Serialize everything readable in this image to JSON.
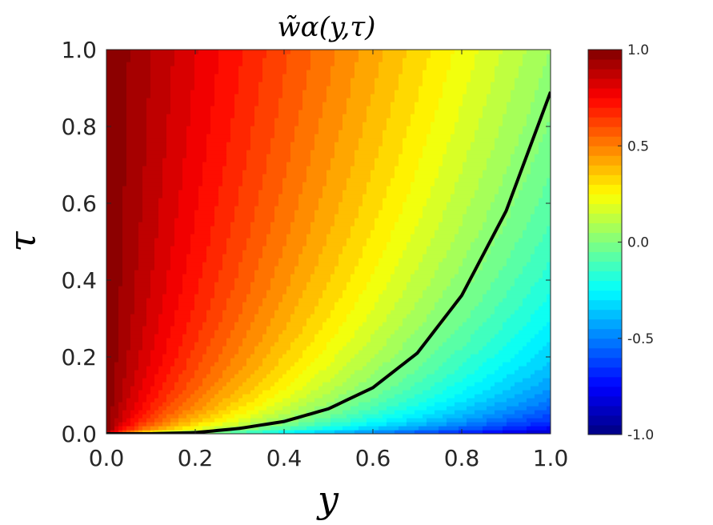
{
  "chart_data": {
    "type": "heatmap",
    "title": "w̃α(y,τ)",
    "xlabel": "y",
    "ylabel": "τ",
    "xlim": [
      0.0,
      1.0
    ],
    "ylim": [
      0.0,
      1.0
    ],
    "xticks": [
      "0.0",
      "0.2",
      "0.4",
      "0.6",
      "0.8",
      "1.0"
    ],
    "yticks": [
      "0.0",
      "0.2",
      "0.4",
      "0.6",
      "0.8",
      "1.0"
    ],
    "colorbar": {
      "colormap": "jet",
      "range": [
        -1.0,
        1.0
      ],
      "ticks": [
        "1.0",
        "0.5",
        "0.0",
        "-0.5",
        "-1.0"
      ],
      "levels": 40
    },
    "curve": {
      "color": "#000000",
      "x": [
        0.0,
        0.1,
        0.2,
        0.3,
        0.4,
        0.5,
        0.6,
        0.7,
        0.8,
        0.9,
        1.0
      ],
      "y": [
        0.0,
        0.0001,
        0.003,
        0.014,
        0.032,
        0.065,
        0.12,
        0.21,
        0.36,
        0.58,
        0.89
      ]
    }
  }
}
